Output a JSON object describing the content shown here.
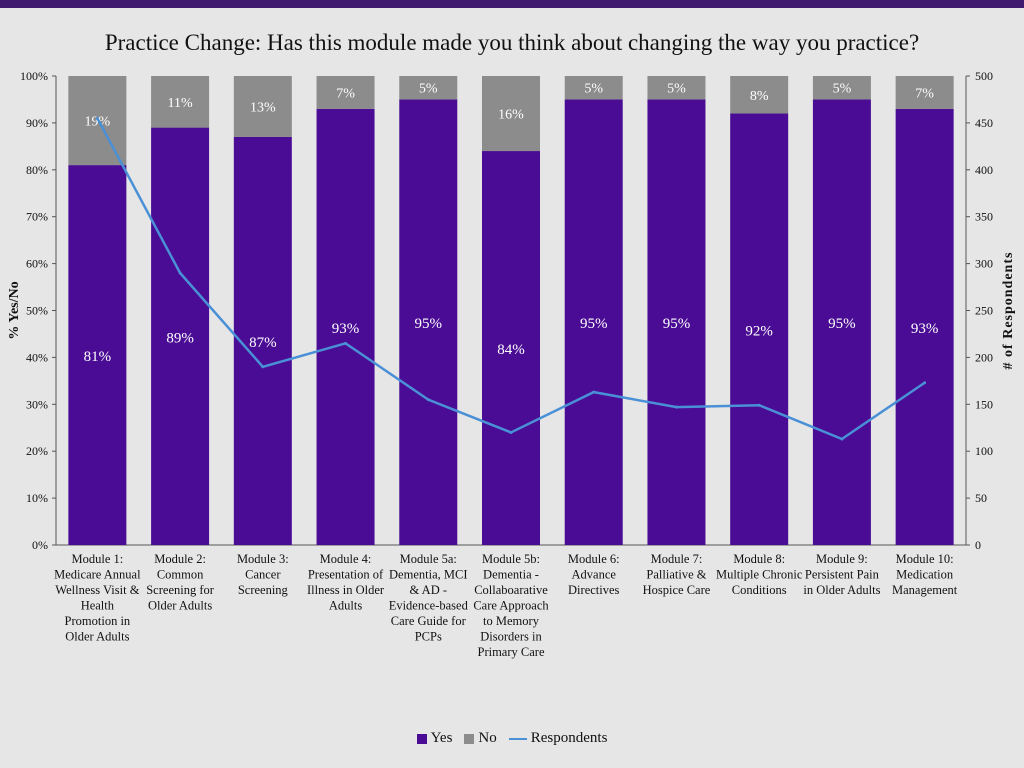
{
  "chart_data": {
    "type": "bar",
    "title": "Practice Change: Has this module made you think about changing the way you practice?",
    "ylabel_left": "% Yes/No",
    "ylabel_right": "# of Respondents",
    "ylim_left": [
      0,
      100
    ],
    "ylim_right": [
      0,
      500
    ],
    "left_ticks": [
      "0%",
      "10%",
      "20%",
      "30%",
      "40%",
      "50%",
      "60%",
      "70%",
      "80%",
      "90%",
      "100%"
    ],
    "right_ticks": [
      "0",
      "50",
      "100",
      "150",
      "200",
      "250",
      "300",
      "350",
      "400",
      "450",
      "500"
    ],
    "stacked": true,
    "categories": [
      [
        "Module 1:",
        "Medicare Annual",
        "Wellness Visit &",
        "Health",
        "Promotion in",
        "Older Adults"
      ],
      [
        "Module 2:",
        "Common",
        "Screening for",
        "Older Adults"
      ],
      [
        "Module 3:",
        "Cancer",
        "Screening"
      ],
      [
        "Module 4:",
        "Presentation of",
        "Illness in Older",
        "Adults"
      ],
      [
        "Module 5a:",
        "Dementia, MCI",
        "& AD -",
        "Evidence-based",
        "Care Guide for",
        "PCPs"
      ],
      [
        "Module 5b:",
        "Dementia -",
        "Collaboarative",
        "Care Approach",
        "to Memory",
        "Disorders in",
        "Primary Care"
      ],
      [
        "Module 6:",
        "Advance",
        "Directives"
      ],
      [
        "Module 7:",
        "Palliative &",
        "Hospice Care"
      ],
      [
        "Module 8:",
        "Multiple Chronic",
        "Conditions"
      ],
      [
        "Module 9:",
        "Persistent Pain",
        "in Older Adults"
      ],
      [
        "Module 10:",
        "Medication",
        "Management"
      ]
    ],
    "series": [
      {
        "name": "Yes",
        "kind": "bar",
        "color": "#4a0c94",
        "values": [
          81,
          89,
          87,
          93,
          95,
          84,
          95,
          95,
          92,
          95,
          93
        ],
        "labels": [
          "81%",
          "89%",
          "87%",
          "93%",
          "95%",
          "84%",
          "95%",
          "95%",
          "92%",
          "95%",
          "93%"
        ]
      },
      {
        "name": "No",
        "kind": "bar",
        "color": "#8c8c8c",
        "values": [
          19,
          11,
          13,
          7,
          5,
          16,
          5,
          5,
          8,
          5,
          7
        ],
        "labels": [
          "19%",
          "11%",
          "13%",
          "7%",
          "5%",
          "16%",
          "5%",
          "5%",
          "8%",
          "5%",
          "7%"
        ]
      },
      {
        "name": "Respondents",
        "kind": "line",
        "axis": "right",
        "color": "#4a90d6",
        "values": [
          455,
          290,
          190,
          215,
          155,
          120,
          163,
          147,
          149,
          113,
          173
        ]
      }
    ],
    "grid": false,
    "legend_position": "bottom"
  }
}
